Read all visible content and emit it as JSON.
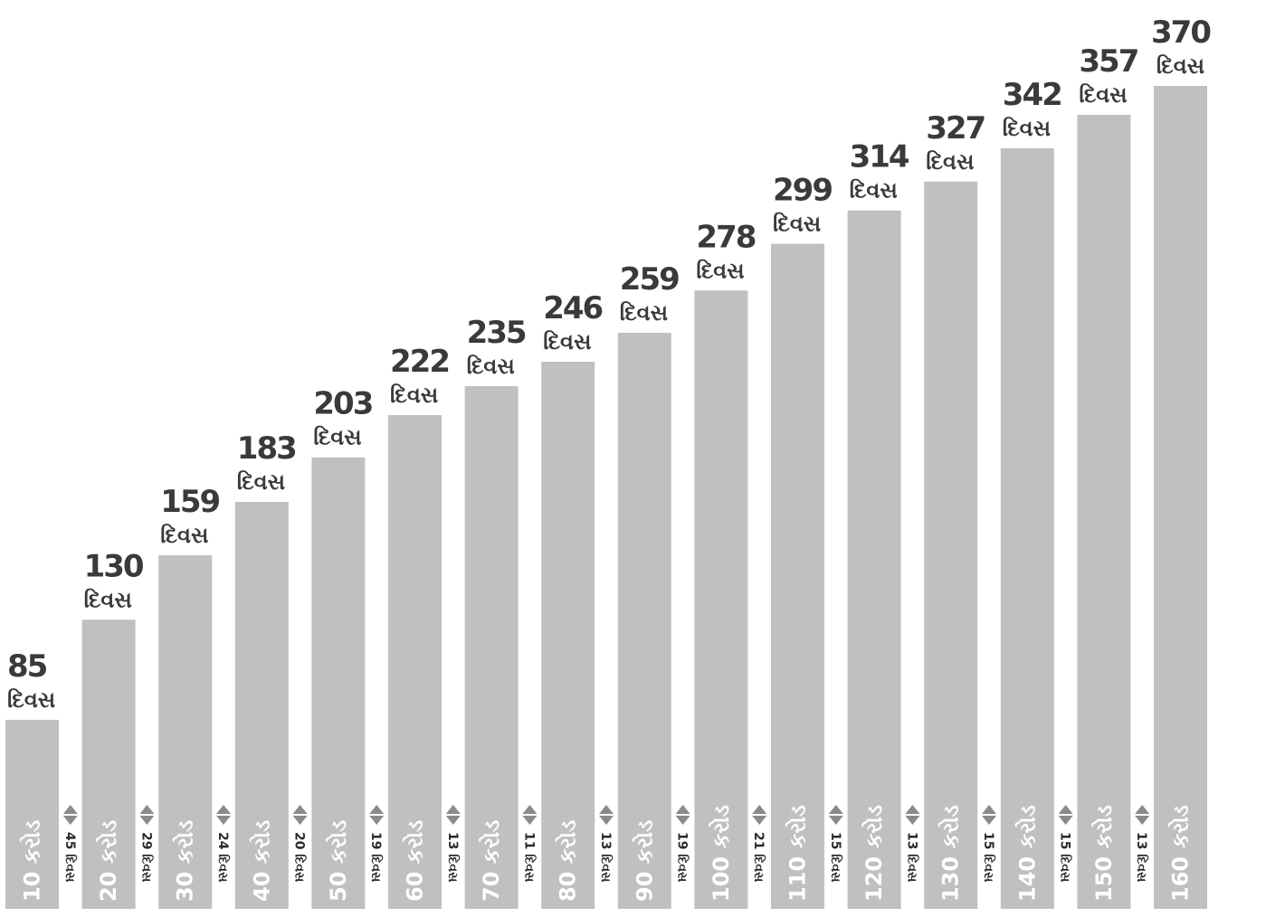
{
  "chart_data": {
    "type": "bar",
    "title": "",
    "categories": [
      "10 કરોડ",
      "20 કરોડ",
      "30 કરોડ",
      "40 કરોડ",
      "50 કરોડ",
      "60 કરોડ",
      "70 કરોડ",
      "80 કરોડ",
      "90 કરોડ",
      "100 કરોડ",
      "110 કરોડ",
      "120 કરોડ",
      "130 કરોડ",
      "140 કરોડ",
      "150 કરોડ",
      "160 કરોડ"
    ],
    "values": [
      85,
      130,
      159,
      183,
      203,
      222,
      235,
      246,
      259,
      278,
      299,
      314,
      327,
      342,
      357,
      370
    ],
    "value_unit": "દિવસ",
    "gaps": [
      "45 દિવસ",
      "29 દિવસ",
      "24 દિવસ",
      "20 દિવસ",
      "19 દિવસ",
      "13 દિવસ",
      "11 દિવસ",
      "13 દિવસ",
      "19 દિવસ",
      "21 દિવસ",
      "15 દિવસ",
      "13 દિવસ",
      "15 દિવસ",
      "15 દિવસ",
      "13 દિવસ"
    ],
    "ylim": [
      0,
      370
    ],
    "bar_color": "#c0c0c0",
    "arrow_color": "#8a8a8a",
    "grid": false,
    "legend": "none"
  }
}
